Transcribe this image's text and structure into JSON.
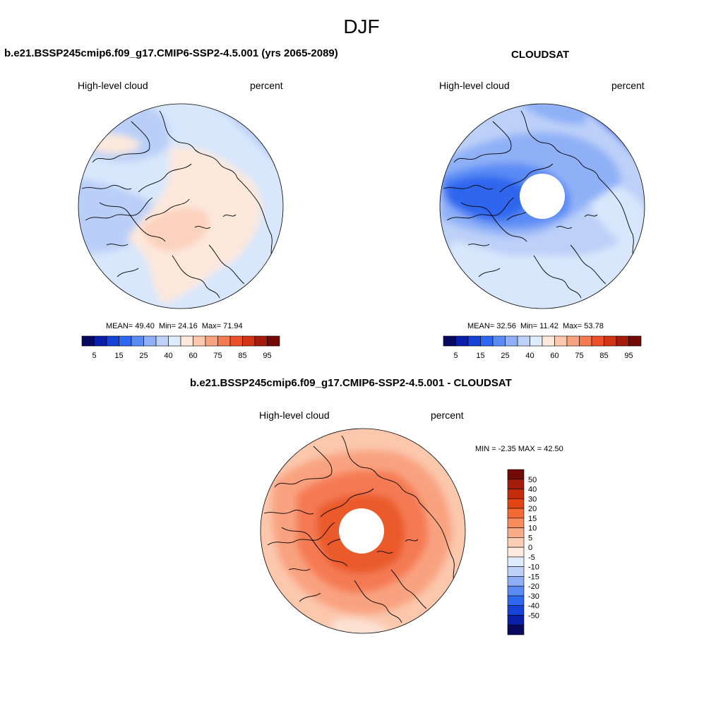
{
  "figure": {
    "season": "DJF"
  },
  "panels": [
    {
      "title": "b.e21.BSSP245cmip6.f09_g17.CMIP6-SSP2-4.5.001 (yrs 2065-2089)",
      "variable": "High-level cloud",
      "units": "percent",
      "stats": {
        "mean_label": "MEAN=",
        "mean": "49.40",
        "min_label": "Min=",
        "min": "24.16",
        "max_label": "Max=",
        "max": "71.94"
      }
    },
    {
      "title": "CLOUDSAT",
      "variable": "High-level cloud",
      "units": "percent",
      "stats": {
        "mean_label": "MEAN=",
        "mean": "32.56",
        "min_label": "Min=",
        "min": "11.42",
        "max_label": "Max=",
        "max": "53.78"
      }
    },
    {
      "title": "b.e21.BSSP245cmip6.f09_g17.CMIP6-SSP2-4.5.001 - CLOUDSAT",
      "variable": "High-level cloud",
      "units": "percent",
      "stats": {
        "min_label": "MIN =",
        "min": "-2.35",
        "max_label": "MAX =",
        "max": "42.50"
      }
    }
  ],
  "colorbars": {
    "abs": {
      "colors": [
        "#08085e",
        "#0a1fa8",
        "#1642d6",
        "#2e67f0",
        "#5a8bf5",
        "#8fb0f7",
        "#bcd0f8",
        "#deebfb",
        "#fde8dc",
        "#fbc7ad",
        "#f9a27f",
        "#f47a52",
        "#ec5028",
        "#d03412",
        "#a31c0c",
        "#730a05"
      ],
      "tick_labels": [
        "5",
        "15",
        "25",
        "40",
        "60",
        "75",
        "85",
        "95"
      ]
    },
    "diff": {
      "colors": [
        "#730a05",
        "#a31c0c",
        "#c42c0c",
        "#e34416",
        "#f56a34",
        "#f88c5e",
        "#f9aa86",
        "#fbcdb4",
        "#fdeade",
        "#deebfb",
        "#bcd0f8",
        "#8fb0f7",
        "#5a8bf5",
        "#2e67f0",
        "#1642d6",
        "#0a1fa8",
        "#08085e"
      ],
      "tick_labels": [
        "50",
        "40",
        "30",
        "20",
        "15",
        "10",
        "5",
        "0",
        "-5",
        "-10",
        "-15",
        "-20",
        "-30",
        "-40",
        "-50"
      ]
    }
  },
  "map_colors": {
    "p1_base": "#d8e7fb",
    "p1_warm": "#fde8dc",
    "p1_warm2": "#fbd2bd",
    "p1_cool": "#b9cff8",
    "p2_base": "#bcd0f8",
    "p2_light": "#d8e7fb",
    "p2_mid": "#8fb0f7",
    "p2_dark": "#5a8bf5",
    "p2_darkest": "#2f66ee",
    "p3_base": "#fbc7ad",
    "p3_light": "#fde2d3",
    "p3_mid": "#f9a27f",
    "p3_dark": "#f47a52",
    "p3_darkest": "#ea5a2c"
  }
}
